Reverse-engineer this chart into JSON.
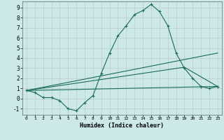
{
  "xlabel": "Humidex (Indice chaleur)",
  "ylabel": "",
  "background_color": "#cce8e8",
  "grid_color": "#bbcccc",
  "line_color": "#1a6b5a",
  "xlim": [
    -0.5,
    23.5
  ],
  "ylim": [
    -1.6,
    9.6
  ],
  "xticks": [
    0,
    1,
    2,
    3,
    4,
    5,
    6,
    7,
    8,
    9,
    10,
    11,
    12,
    13,
    14,
    15,
    16,
    17,
    18,
    19,
    20,
    21,
    22,
    23
  ],
  "yticks": [
    -1,
    0,
    1,
    2,
    3,
    4,
    5,
    6,
    7,
    8,
    9
  ],
  "line1_x": [
    0,
    1,
    2,
    3,
    4,
    5,
    6,
    7,
    8,
    9,
    10,
    11,
    12,
    13,
    14,
    15,
    16,
    17,
    18,
    19,
    20,
    21,
    22,
    23
  ],
  "line1_y": [
    0.8,
    0.6,
    0.1,
    0.1,
    -0.2,
    -1.0,
    -1.2,
    -0.4,
    0.3,
    2.5,
    4.5,
    6.2,
    7.2,
    8.3,
    8.7,
    9.3,
    8.6,
    7.2,
    4.5,
    3.0,
    2.0,
    1.2,
    1.0,
    1.2
  ],
  "line2_x": [
    0,
    23
  ],
  "line2_y": [
    0.8,
    4.5
  ],
  "line3_x": [
    0,
    23
  ],
  "line3_y": [
    0.8,
    1.2
  ],
  "line4_x": [
    0,
    19,
    23
  ],
  "line4_y": [
    0.8,
    3.1,
    1.2
  ]
}
